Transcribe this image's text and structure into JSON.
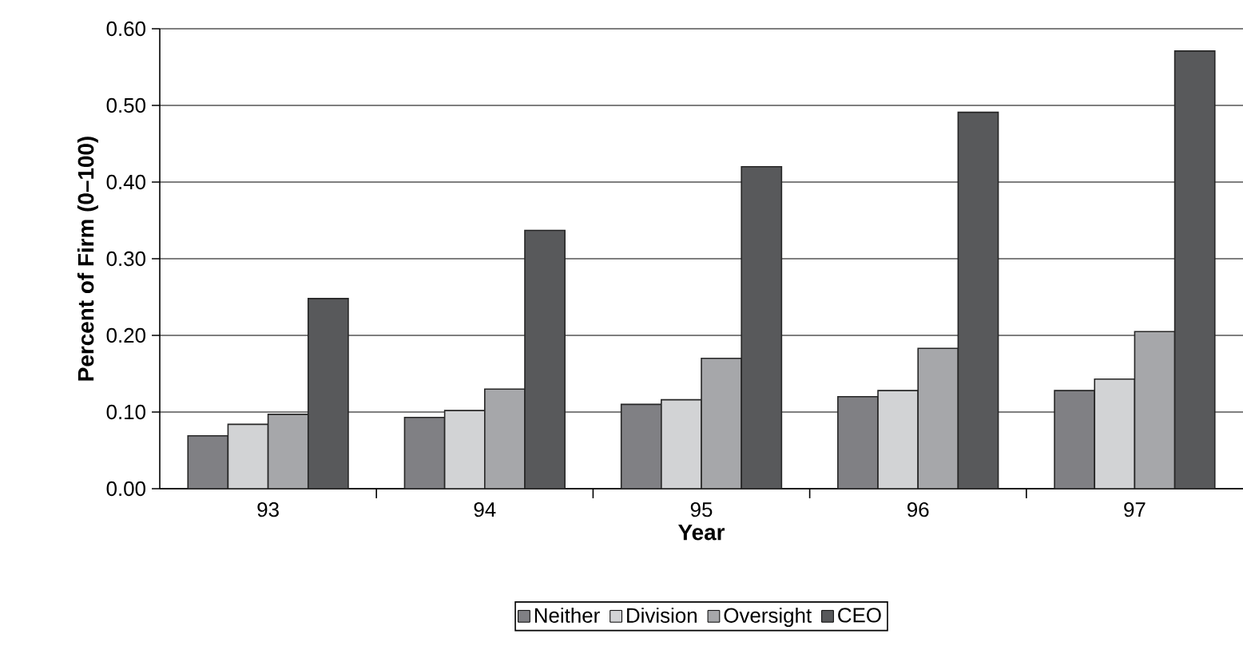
{
  "chart_data": {
    "type": "bar",
    "xlabel": "Year",
    "ylabel": "Percent of Firm (0–100)",
    "categories": [
      "93",
      "94",
      "95",
      "96",
      "97"
    ],
    "series": [
      {
        "name": "Neither",
        "color": "#808084",
        "values": [
          0.069,
          0.093,
          0.11,
          0.12,
          0.128
        ]
      },
      {
        "name": "Division",
        "color": "#d2d3d5",
        "values": [
          0.084,
          0.102,
          0.116,
          0.128,
          0.143
        ]
      },
      {
        "name": "Oversight",
        "color": "#a6a7aa",
        "values": [
          0.097,
          0.13,
          0.17,
          0.183,
          0.205
        ]
      },
      {
        "name": "CEO",
        "color": "#58595b",
        "values": [
          0.248,
          0.337,
          0.42,
          0.491,
          0.571
        ]
      }
    ],
    "ylim": [
      0,
      0.6
    ],
    "yticks": [
      {
        "value": 0,
        "label": "0.00"
      },
      {
        "value": 0.1,
        "label": "0.10"
      },
      {
        "value": 0.2,
        "label": "0.20"
      },
      {
        "value": 0.3,
        "label": "0.30"
      },
      {
        "value": 0.4,
        "label": "0.40"
      },
      {
        "value": 0.5,
        "label": "0.50"
      },
      {
        "value": 0.6,
        "label": "0.60"
      }
    ],
    "grid": "y",
    "legend": "bottom"
  }
}
